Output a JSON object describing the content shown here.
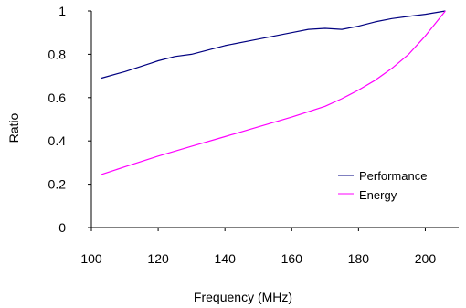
{
  "chart_data": {
    "type": "line",
    "xlabel": "Frequency (MHz)",
    "ylabel": "Ratio",
    "xlim": [
      100,
      210
    ],
    "ylim": [
      0,
      1
    ],
    "xticks": [
      100,
      120,
      140,
      160,
      180,
      200
    ],
    "yticks": [
      0,
      0.2,
      0.4,
      0.6,
      0.8,
      1
    ],
    "ytick_labels": [
      "0",
      "0.2",
      "0.4",
      "0.6",
      "0.8",
      "1"
    ],
    "grid": false,
    "legend": "bottom-right",
    "series": [
      {
        "name": "Performance",
        "color": "#000080",
        "x": [
          103,
          110,
          118,
          120,
          125,
          130,
          140,
          150,
          160,
          165,
          170,
          175,
          180,
          185,
          190,
          195,
          200,
          206
        ],
        "y": [
          0.69,
          0.72,
          0.76,
          0.77,
          0.79,
          0.8,
          0.84,
          0.87,
          0.9,
          0.915,
          0.92,
          0.915,
          0.93,
          0.95,
          0.965,
          0.975,
          0.985,
          1.0
        ]
      },
      {
        "name": "Energy",
        "color": "#ff00ff",
        "x": [
          103,
          110,
          120,
          130,
          140,
          150,
          160,
          170,
          175,
          180,
          185,
          190,
          195,
          200,
          206
        ],
        "y": [
          0.245,
          0.28,
          0.33,
          0.375,
          0.42,
          0.465,
          0.51,
          0.56,
          0.595,
          0.635,
          0.68,
          0.735,
          0.8,
          0.885,
          1.0
        ]
      }
    ]
  }
}
